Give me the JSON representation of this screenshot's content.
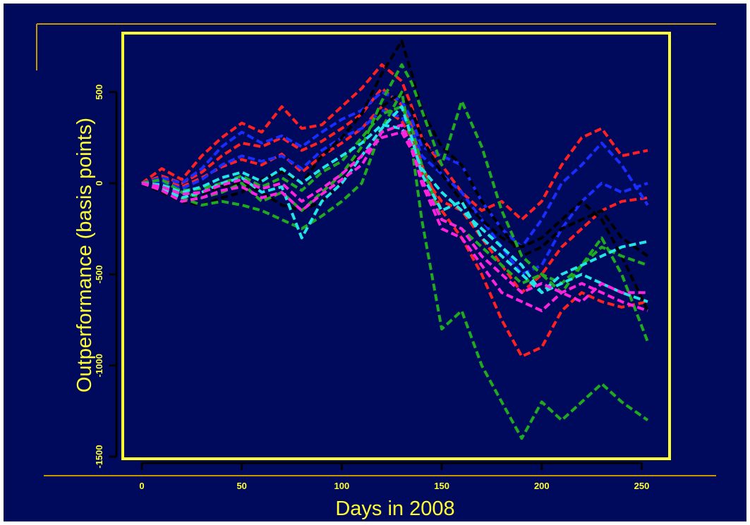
{
  "theme": {
    "background": "#000a5c",
    "frame_color": "#ffff33",
    "rule_color": "#c89600",
    "text_color": "#ffff33"
  },
  "chart_data": {
    "type": "line",
    "title": "",
    "xlabel": "Days in 2008",
    "ylabel": "Outperformance (basis points)",
    "xlim": [
      0,
      253
    ],
    "ylim": [
      -1500,
      800
    ],
    "x_ticks": [
      0,
      50,
      100,
      150,
      200,
      250
    ],
    "x_tick_labels": [
      "0",
      "50",
      "100",
      "150",
      "200",
      "250"
    ],
    "y_ticks": [
      -1500,
      -1000,
      -500,
      0,
      500
    ],
    "y_tick_labels": [
      "-1500",
      "-1000",
      "-500",
      "0",
      "500"
    ],
    "grid": false,
    "legend": "none",
    "line_style": "dashed",
    "x": [
      0,
      10,
      20,
      30,
      40,
      50,
      60,
      70,
      80,
      90,
      100,
      110,
      120,
      130,
      135,
      140,
      150,
      160,
      170,
      180,
      190,
      200,
      210,
      220,
      230,
      240,
      253
    ],
    "series": [
      {
        "color": "#ff2020",
        "values": [
          0,
          80,
          20,
          150,
          250,
          330,
          280,
          420,
          300,
          320,
          420,
          520,
          650,
          560,
          420,
          250,
          100,
          -50,
          -150,
          -100,
          -200,
          -100,
          100,
          250,
          300,
          150,
          180
        ]
      },
      {
        "color": "#ff2020",
        "values": [
          0,
          40,
          0,
          60,
          150,
          220,
          200,
          250,
          180,
          230,
          300,
          380,
          520,
          430,
          320,
          100,
          -150,
          -300,
          -500,
          -750,
          -950,
          -900,
          -700,
          -600,
          -650,
          -680,
          -650
        ]
      },
      {
        "color": "#ff2020",
        "values": [
          0,
          20,
          -20,
          30,
          90,
          130,
          100,
          160,
          60,
          150,
          220,
          300,
          420,
          340,
          250,
          50,
          -100,
          -150,
          -300,
          -450,
          -600,
          -500,
          -350,
          -250,
          -150,
          -100,
          -80
        ]
      },
      {
        "color": "#1a2dff",
        "values": [
          0,
          30,
          0,
          80,
          200,
          280,
          220,
          260,
          200,
          280,
          350,
          400,
          500,
          450,
          350,
          200,
          150,
          100,
          -100,
          -250,
          -350,
          -200,
          0,
          100,
          220,
          100,
          -120
        ]
      },
      {
        "color": "#1a2dff",
        "values": [
          0,
          10,
          -30,
          20,
          100,
          150,
          120,
          150,
          80,
          180,
          250,
          300,
          400,
          360,
          300,
          150,
          50,
          -50,
          -200,
          -350,
          -500,
          -450,
          -250,
          -100,
          0,
          -50,
          0
        ]
      },
      {
        "color": "#000000",
        "values": [
          0,
          -50,
          -100,
          -120,
          -80,
          -50,
          20,
          60,
          0,
          150,
          250,
          380,
          600,
          780,
          600,
          400,
          200,
          100,
          -100,
          -250,
          -400,
          -350,
          -250,
          -200,
          -150,
          -300,
          -400
        ]
      },
      {
        "color": "#000000",
        "values": [
          0,
          -30,
          -80,
          -60,
          -20,
          0,
          -50,
          -120,
          -150,
          -100,
          0,
          200,
          420,
          500,
          400,
          250,
          50,
          -100,
          -200,
          -300,
          -350,
          -300,
          -200,
          -100,
          -200,
          -400,
          -700
        ]
      },
      {
        "color": "#1faa1f",
        "values": [
          0,
          -20,
          -80,
          -120,
          -100,
          -120,
          -150,
          -200,
          -250,
          -180,
          -100,
          0,
          300,
          500,
          200,
          -200,
          -800,
          -700,
          -1000,
          -1200,
          -1400,
          -1200,
          -1300,
          -1200,
          -1100,
          -1200,
          -1300
        ]
      },
      {
        "color": "#1faa1f",
        "values": [
          0,
          20,
          -50,
          -80,
          -50,
          0,
          -100,
          -50,
          -150,
          -50,
          50,
          200,
          450,
          650,
          550,
          400,
          100,
          450,
          200,
          -150,
          -400,
          -500,
          -550,
          -450,
          -300,
          -500,
          -870
        ]
      },
      {
        "color": "#1faa1f",
        "values": [
          0,
          -10,
          -40,
          -30,
          0,
          40,
          -20,
          30,
          -40,
          60,
          120,
          250,
          380,
          420,
          300,
          100,
          -200,
          -250,
          -350,
          -450,
          -550,
          -500,
          -600,
          -450,
          -350,
          -400,
          -450
        ]
      },
      {
        "color": "#22e6e6",
        "values": [
          0,
          -30,
          -80,
          -50,
          0,
          30,
          -50,
          -20,
          -300,
          -100,
          0,
          150,
          300,
          420,
          250,
          50,
          -150,
          -100,
          -300,
          -400,
          -500,
          -600,
          -500,
          -450,
          -400,
          -350,
          -320
        ]
      },
      {
        "color": "#22e6e6",
        "values": [
          0,
          -10,
          -50,
          -20,
          30,
          60,
          10,
          80,
          0,
          80,
          150,
          220,
          320,
          300,
          220,
          80,
          -50,
          -150,
          -250,
          -350,
          -450,
          -600,
          -550,
          -500,
          -550,
          -600,
          -650
        ]
      },
      {
        "color": "#ff22dd",
        "values": [
          0,
          -40,
          -100,
          -80,
          -40,
          -20,
          -80,
          -50,
          -150,
          -60,
          20,
          100,
          280,
          320,
          200,
          0,
          -250,
          -300,
          -450,
          -600,
          -650,
          -700,
          -600,
          -550,
          -600,
          -650,
          -700
        ]
      },
      {
        "color": "#ff22dd",
        "values": [
          0,
          -20,
          -60,
          -50,
          -10,
          20,
          -30,
          0,
          -100,
          -30,
          50,
          150,
          250,
          280,
          180,
          20,
          -200,
          -250,
          -400,
          -500,
          -600,
          -550,
          -600,
          -650,
          -550,
          -600,
          -600
        ]
      }
    ]
  }
}
